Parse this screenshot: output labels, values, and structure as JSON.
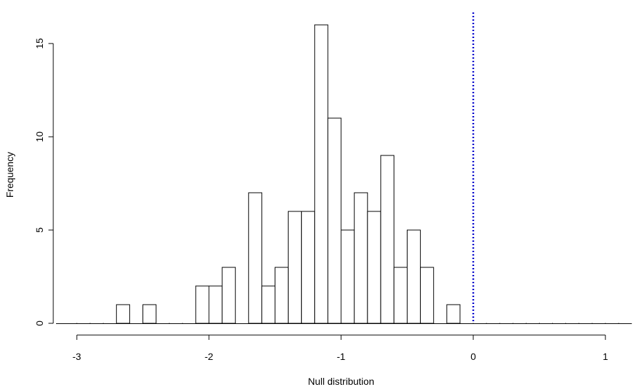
{
  "chart_data": {
    "type": "bar",
    "xlabel": "Null distribution",
    "ylabel": "Frequency",
    "xlim": [
      -3.0,
      1.0
    ],
    "ylim": [
      0,
      16
    ],
    "xticks": [
      -3,
      -2,
      -1,
      0,
      1
    ],
    "xtick_labels": [
      "-3",
      "-2",
      "-1",
      "0",
      "1"
    ],
    "yticks": [
      0,
      5,
      10,
      15
    ],
    "ytick_labels": [
      "0",
      "5",
      "10",
      "15"
    ],
    "bins": [
      {
        "x0": -3.0,
        "x1": -2.9,
        "count": 0
      },
      {
        "x0": -2.9,
        "x1": -2.8,
        "count": 0
      },
      {
        "x0": -2.8,
        "x1": -2.7,
        "count": 0
      },
      {
        "x0": -2.7,
        "x1": -2.6,
        "count": 1
      },
      {
        "x0": -2.6,
        "x1": -2.5,
        "count": 0
      },
      {
        "x0": -2.5,
        "x1": -2.4,
        "count": 1
      },
      {
        "x0": -2.4,
        "x1": -2.3,
        "count": 0
      },
      {
        "x0": -2.3,
        "x1": -2.2,
        "count": 0
      },
      {
        "x0": -2.2,
        "x1": -2.1,
        "count": 0
      },
      {
        "x0": -2.1,
        "x1": -2.0,
        "count": 2
      },
      {
        "x0": -2.0,
        "x1": -1.9,
        "count": 2
      },
      {
        "x0": -1.9,
        "x1": -1.8,
        "count": 3
      },
      {
        "x0": -1.8,
        "x1": -1.7,
        "count": 0
      },
      {
        "x0": -1.7,
        "x1": -1.6,
        "count": 7
      },
      {
        "x0": -1.6,
        "x1": -1.5,
        "count": 2
      },
      {
        "x0": -1.5,
        "x1": -1.4,
        "count": 3
      },
      {
        "x0": -1.4,
        "x1": -1.3,
        "count": 6
      },
      {
        "x0": -1.3,
        "x1": -1.2,
        "count": 6
      },
      {
        "x0": -1.2,
        "x1": -1.1,
        "count": 16
      },
      {
        "x0": -1.1,
        "x1": -1.0,
        "count": 11
      },
      {
        "x0": -1.0,
        "x1": -0.9,
        "count": 5
      },
      {
        "x0": -0.9,
        "x1": -0.8,
        "count": 7
      },
      {
        "x0": -0.8,
        "x1": -0.7,
        "count": 6
      },
      {
        "x0": -0.7,
        "x1": -0.6,
        "count": 9
      },
      {
        "x0": -0.6,
        "x1": -0.5,
        "count": 3
      },
      {
        "x0": -0.5,
        "x1": -0.4,
        "count": 5
      },
      {
        "x0": -0.4,
        "x1": -0.3,
        "count": 3
      },
      {
        "x0": -0.3,
        "x1": -0.2,
        "count": 0
      },
      {
        "x0": -0.2,
        "x1": -0.1,
        "count": 1
      },
      {
        "x0": -0.1,
        "x1": 0.0,
        "count": 0
      },
      {
        "x0": 0.0,
        "x1": 0.1,
        "count": 0
      },
      {
        "x0": 0.1,
        "x1": 0.2,
        "count": 0
      },
      {
        "x0": 0.2,
        "x1": 0.3,
        "count": 0
      },
      {
        "x0": 0.3,
        "x1": 0.4,
        "count": 0
      },
      {
        "x0": 0.4,
        "x1": 0.5,
        "count": 0
      },
      {
        "x0": 0.5,
        "x1": 0.6,
        "count": 0
      },
      {
        "x0": 0.6,
        "x1": 0.7,
        "count": 0
      },
      {
        "x0": 0.7,
        "x1": 0.8,
        "count": 0
      },
      {
        "x0": 0.8,
        "x1": 0.9,
        "count": 0
      },
      {
        "x0": 0.9,
        "x1": 1.0,
        "count": 0
      },
      {
        "x0": 1.0,
        "x1": 1.1,
        "count": 0
      },
      {
        "x0": 1.1,
        "x1": 1.2,
        "count": 0
      }
    ],
    "reference_line": {
      "x": 0,
      "style": "dotted",
      "color": "#0000cc"
    },
    "grid": false,
    "legend": "none"
  }
}
